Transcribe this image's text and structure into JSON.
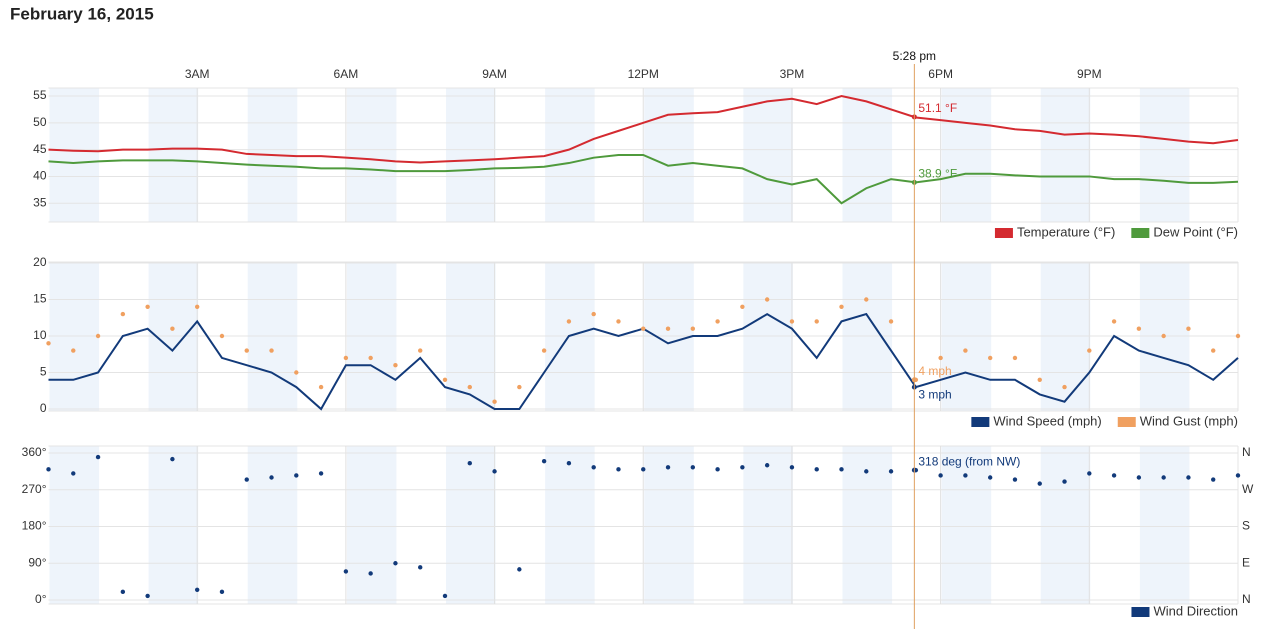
{
  "title": "February 16, 2015",
  "chart_data": [
    {
      "type": "line",
      "xlim": [
        0,
        24
      ],
      "xticks": [
        {
          "value": 3,
          "label": "3AM"
        },
        {
          "value": 6,
          "label": "6AM"
        },
        {
          "value": 9,
          "label": "9AM"
        },
        {
          "value": 12,
          "label": "12PM"
        },
        {
          "value": 15,
          "label": "3PM"
        },
        {
          "value": 18,
          "label": "6PM"
        },
        {
          "value": 21,
          "label": "9PM"
        }
      ],
      "cursor": {
        "x": 17.47,
        "label": "5:28 pm"
      },
      "x": [
        0,
        0.5,
        1,
        1.5,
        2,
        2.5,
        3,
        3.5,
        4,
        4.5,
        5,
        5.5,
        6,
        6.5,
        7,
        7.5,
        8,
        8.5,
        9,
        9.5,
        10,
        10.5,
        11,
        11.5,
        12,
        12.5,
        13,
        13.5,
        14,
        14.5,
        15,
        15.5,
        16,
        16.5,
        17,
        17.5,
        18,
        18.5,
        19,
        19.5,
        20,
        20.5,
        21,
        21.5,
        22,
        22.5,
        23,
        23.5,
        24
      ],
      "ylim": [
        31.5,
        56.5
      ],
      "yticks": [
        35,
        40,
        45,
        50,
        55
      ],
      "series": [
        {
          "name": "Temperature (°F)",
          "color": "#d42a30",
          "readout": {
            "value": 51.1,
            "label": "51.1 °F"
          },
          "values": [
            45,
            44.8,
            44.7,
            45,
            45,
            45.2,
            45.2,
            45,
            44.2,
            44,
            43.8,
            43.8,
            43.5,
            43.2,
            42.8,
            42.6,
            42.8,
            43,
            43.2,
            43.5,
            43.8,
            45,
            47,
            48.5,
            50,
            51.5,
            51.8,
            52,
            53,
            54,
            54.5,
            53.5,
            55,
            54,
            52.5,
            51,
            50.5,
            50,
            49.5,
            48.8,
            48.5,
            47.8,
            48,
            47.8,
            47.5,
            47,
            46.5,
            46.2,
            46.8
          ]
        },
        {
          "name": "Dew Point (°F)",
          "color": "#4f9a3c",
          "readout": {
            "value": 38.9,
            "label": "38.9 °F"
          },
          "values": [
            42.8,
            42.5,
            42.8,
            43,
            43,
            43,
            42.8,
            42.5,
            42.2,
            42,
            41.8,
            41.5,
            41.5,
            41.3,
            41,
            41,
            41,
            41.2,
            41.5,
            41.6,
            41.8,
            42.5,
            43.5,
            44,
            44,
            42,
            42.5,
            42,
            41.5,
            39.5,
            38.5,
            39.5,
            35,
            37.8,
            39.5,
            38.9,
            39.5,
            40.5,
            40.5,
            40.2,
            40,
            40,
            40,
            39.5,
            39.5,
            39.2,
            38.8,
            38.8,
            39
          ]
        }
      ]
    },
    {
      "type": "line",
      "xlim": [
        0,
        24
      ],
      "x": [
        0,
        0.5,
        1,
        1.5,
        2,
        2.5,
        3,
        3.5,
        4,
        4.5,
        5,
        5.5,
        6,
        6.5,
        7,
        7.5,
        8,
        8.5,
        9,
        9.5,
        10,
        10.5,
        11,
        11.5,
        12,
        12.5,
        13,
        13.5,
        14,
        14.5,
        15,
        15.5,
        16,
        16.5,
        17,
        17.5,
        18,
        18.5,
        19,
        19.5,
        20,
        20.5,
        21,
        21.5,
        22,
        22.5,
        23,
        23.5,
        24
      ],
      "ylim": [
        0,
        20
      ],
      "yticks": [
        0,
        5,
        10,
        15,
        20
      ],
      "series": [
        {
          "name": "Wind Speed (mph)",
          "color": "#123a7a",
          "style": "line",
          "readout": {
            "value": 3,
            "label": "3 mph"
          },
          "values": [
            4,
            4,
            5,
            10,
            11,
            8,
            12,
            7,
            6,
            5,
            3,
            0,
            6,
            6,
            4,
            7,
            3,
            2,
            0,
            0,
            5,
            10,
            11,
            10,
            11,
            9,
            10,
            10,
            11,
            13,
            11,
            7,
            12,
            13,
            8,
            3,
            4,
            5,
            4,
            4,
            2,
            1,
            5,
            10,
            8,
            7,
            6,
            4,
            7
          ]
        },
        {
          "name": "Wind Gust (mph)",
          "color": "#f0a060",
          "style": "dots",
          "readout": {
            "value": 4,
            "label": "4 mph"
          },
          "values": [
            9,
            8,
            10,
            13,
            14,
            11,
            14,
            10,
            8,
            8,
            5,
            3,
            7,
            7,
            6,
            8,
            4,
            3,
            1,
            3,
            8,
            12,
            13,
            12,
            11,
            11,
            11,
            12,
            14,
            15,
            12,
            12,
            14,
            15,
            12,
            4,
            7,
            8,
            7,
            7,
            4,
            3,
            8,
            12,
            11,
            10,
            11,
            8,
            10
          ]
        }
      ]
    },
    {
      "type": "scatter",
      "xlim": [
        0,
        24
      ],
      "x": [
        0,
        0.5,
        1,
        1.5,
        2,
        2.5,
        3,
        3.5,
        4,
        4.5,
        5,
        5.5,
        6,
        6.5,
        7,
        7.5,
        8,
        8.5,
        9,
        9.5,
        10,
        10.5,
        11,
        11.5,
        12,
        12.5,
        13,
        13.5,
        14,
        14.5,
        15,
        15.5,
        16,
        16.5,
        17,
        17.5,
        18,
        18.5,
        19,
        19.5,
        20,
        20.5,
        21,
        21.5,
        22,
        22.5,
        23,
        23.5,
        24
      ],
      "ylim": [
        0,
        360
      ],
      "yticks": [
        {
          "value": 0,
          "label": "0°"
        },
        {
          "value": 90,
          "label": "90°"
        },
        {
          "value": 180,
          "label": "180°"
        },
        {
          "value": 270,
          "label": "270°"
        },
        {
          "value": 360,
          "label": "360°"
        }
      ],
      "y2ticks": [
        {
          "value": 0,
          "label": "N"
        },
        {
          "value": 90,
          "label": "E"
        },
        {
          "value": 180,
          "label": "S"
        },
        {
          "value": 270,
          "label": "W"
        },
        {
          "value": 360,
          "label": "N"
        }
      ],
      "series": [
        {
          "name": "Wind Direction",
          "color": "#123a7a",
          "readout": {
            "value": 318,
            "label": "318 deg (from NW)"
          },
          "values": [
            320,
            310,
            350,
            20,
            10,
            345,
            25,
            20,
            295,
            300,
            305,
            310,
            70,
            65,
            90,
            80,
            10,
            335,
            315,
            75,
            340,
            335,
            325,
            320,
            320,
            325,
            325,
            320,
            325,
            330,
            325,
            320,
            320,
            315,
            315,
            318,
            305,
            305,
            300,
            295,
            285,
            290,
            310,
            305,
            300,
            300,
            300,
            295,
            305
          ]
        }
      ]
    }
  ]
}
